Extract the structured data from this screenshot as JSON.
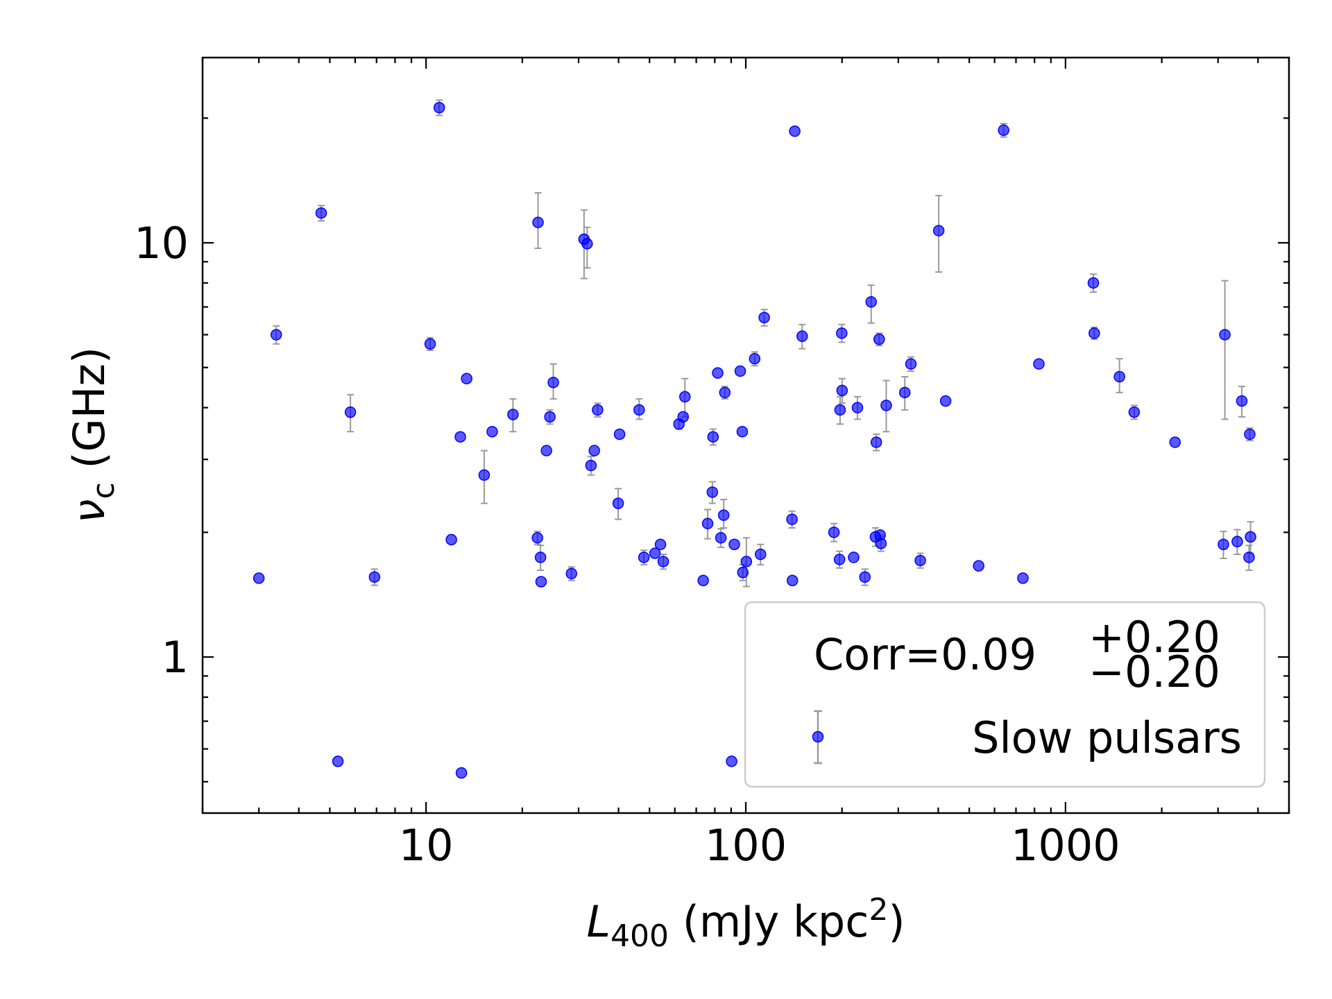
{
  "chart_data": {
    "type": "scatter",
    "xscale": "log",
    "yscale": "log",
    "xlim": [
      2.0,
      5000
    ],
    "ylim": [
      0.42,
      28
    ],
    "xticks": [
      10,
      100,
      1000
    ],
    "xtick_labels": [
      "10",
      "100",
      "1000"
    ],
    "yticks": [
      1,
      10
    ],
    "ytick_labels": [
      "1",
      "10"
    ],
    "xlabel": {
      "main": "L",
      "sub": "400",
      "rest": " (mJy kpc",
      "sup": "2",
      "end": ")"
    },
    "ylabel": {
      "main": "ν",
      "sub": "c",
      "rest": " (GHz)"
    },
    "grid": false,
    "legend": {
      "placement": "lower-right",
      "annotation": {
        "prefix": "Corr=0.09",
        "sup": "+0.20",
        "sub": "−0.20"
      },
      "entries": [
        "Slow pulsars"
      ]
    },
    "series": [
      {
        "name": "Slow pulsars",
        "marker_color": "#0000ff",
        "errorbar_color": "#999999",
        "points": [
          {
            "x": 3.0,
            "y": 1.55
          },
          {
            "x": 3.4,
            "y": 6.0,
            "lo": 5.7,
            "hi": 6.3
          },
          {
            "x": 4.7,
            "y": 11.8,
            "lo": 11.3,
            "hi": 12.3
          },
          {
            "x": 5.3,
            "y": 0.56
          },
          {
            "x": 5.8,
            "y": 3.9,
            "lo": 3.5,
            "hi": 4.3
          },
          {
            "x": 6.9,
            "y": 1.56,
            "lo": 1.49,
            "hi": 1.63
          },
          {
            "x": 10.3,
            "y": 5.7,
            "lo": 5.5,
            "hi": 5.9
          },
          {
            "x": 11.0,
            "y": 21.2,
            "lo": 20.3,
            "hi": 22.1
          },
          {
            "x": 12.0,
            "y": 1.92
          },
          {
            "x": 12.8,
            "y": 3.4
          },
          {
            "x": 12.9,
            "y": 0.525
          },
          {
            "x": 13.4,
            "y": 4.7
          },
          {
            "x": 15.2,
            "y": 2.75,
            "lo": 2.35,
            "hi": 3.15
          },
          {
            "x": 16.1,
            "y": 3.5
          },
          {
            "x": 18.7,
            "y": 3.85,
            "lo": 3.5,
            "hi": 4.2
          },
          {
            "x": 22.3,
            "y": 1.94,
            "lo": 1.87,
            "hi": 2.01
          },
          {
            "x": 22.4,
            "y": 11.2,
            "lo": 9.7,
            "hi": 13.2
          },
          {
            "x": 22.8,
            "y": 1.74,
            "lo": 1.62,
            "hi": 1.86
          },
          {
            "x": 22.9,
            "y": 1.52
          },
          {
            "x": 23.8,
            "y": 3.15
          },
          {
            "x": 24.4,
            "y": 3.8,
            "lo": 3.65,
            "hi": 3.95
          },
          {
            "x": 25.0,
            "y": 4.6,
            "lo": 4.2,
            "hi": 5.1
          },
          {
            "x": 28.5,
            "y": 1.59,
            "lo": 1.53,
            "hi": 1.65
          },
          {
            "x": 31.2,
            "y": 10.2,
            "lo": 8.2,
            "hi": 12.0
          },
          {
            "x": 31.9,
            "y": 9.95,
            "lo": 8.7,
            "hi": 10.9
          },
          {
            "x": 32.8,
            "y": 2.9,
            "lo": 2.75,
            "hi": 3.05
          },
          {
            "x": 33.6,
            "y": 3.15
          },
          {
            "x": 34.4,
            "y": 3.95,
            "lo": 3.8,
            "hi": 4.1
          },
          {
            "x": 39.9,
            "y": 2.35,
            "lo": 2.15,
            "hi": 2.55
          },
          {
            "x": 40.3,
            "y": 3.45
          },
          {
            "x": 46.4,
            "y": 3.95,
            "lo": 3.75,
            "hi": 4.2
          },
          {
            "x": 48.0,
            "y": 1.74,
            "lo": 1.67,
            "hi": 1.81
          },
          {
            "x": 52.0,
            "y": 1.78
          },
          {
            "x": 54.1,
            "y": 1.87
          },
          {
            "x": 55.2,
            "y": 1.7,
            "lo": 1.63,
            "hi": 1.77
          },
          {
            "x": 61.8,
            "y": 3.65,
            "lo": 3.55,
            "hi": 3.75
          },
          {
            "x": 63.7,
            "y": 3.8
          },
          {
            "x": 64.5,
            "y": 4.25,
            "lo": 3.8,
            "hi": 4.7
          },
          {
            "x": 73.6,
            "y": 1.53
          },
          {
            "x": 76.0,
            "y": 2.1,
            "lo": 1.93,
            "hi": 2.27
          },
          {
            "x": 78.6,
            "y": 2.5,
            "lo": 2.35,
            "hi": 2.65
          },
          {
            "x": 79.0,
            "y": 3.4,
            "lo": 3.25,
            "hi": 3.55
          },
          {
            "x": 81.7,
            "y": 4.85
          },
          {
            "x": 83.6,
            "y": 1.94,
            "lo": 1.84,
            "hi": 2.04
          },
          {
            "x": 85.3,
            "y": 2.2,
            "lo": 2.05,
            "hi": 2.4
          },
          {
            "x": 86.0,
            "y": 4.35,
            "lo": 4.2,
            "hi": 4.5
          },
          {
            "x": 90.3,
            "y": 0.56
          },
          {
            "x": 92.1,
            "y": 1.87
          },
          {
            "x": 96.1,
            "y": 4.9
          },
          {
            "x": 97.5,
            "y": 3.5
          },
          {
            "x": 97.9,
            "y": 1.6,
            "lo": 1.53,
            "hi": 1.67
          },
          {
            "x": 100.4,
            "y": 1.7,
            "lo": 1.48,
            "hi": 1.94
          },
          {
            "x": 106.6,
            "y": 5.25,
            "lo": 5.05,
            "hi": 5.45
          },
          {
            "x": 111.2,
            "y": 1.77,
            "lo": 1.67,
            "hi": 1.87
          },
          {
            "x": 114.2,
            "y": 6.6,
            "lo": 6.3,
            "hi": 6.9
          },
          {
            "x": 139.5,
            "y": 2.15,
            "lo": 2.05,
            "hi": 2.25
          },
          {
            "x": 139.9,
            "y": 1.53
          },
          {
            "x": 142.3,
            "y": 18.6
          },
          {
            "x": 150.1,
            "y": 5.95,
            "lo": 5.55,
            "hi": 6.35
          },
          {
            "x": 188.7,
            "y": 2.0,
            "lo": 1.9,
            "hi": 2.1
          },
          {
            "x": 196.4,
            "y": 1.72,
            "lo": 1.64,
            "hi": 1.8
          },
          {
            "x": 197.2,
            "y": 3.95,
            "lo": 3.65,
            "hi": 4.25
          },
          {
            "x": 199.6,
            "y": 6.05,
            "lo": 5.75,
            "hi": 6.35
          },
          {
            "x": 200.1,
            "y": 4.4,
            "lo": 4.1,
            "hi": 4.7
          },
          {
            "x": 217.5,
            "y": 1.74
          },
          {
            "x": 223.5,
            "y": 4.0,
            "lo": 3.75,
            "hi": 4.25
          },
          {
            "x": 235.8,
            "y": 1.56,
            "lo": 1.49,
            "hi": 1.63
          },
          {
            "x": 246.7,
            "y": 7.2,
            "lo": 6.4,
            "hi": 7.9
          },
          {
            "x": 254.4,
            "y": 1.95,
            "lo": 1.85,
            "hi": 2.05
          },
          {
            "x": 256.0,
            "y": 3.3,
            "lo": 3.15,
            "hi": 3.45
          },
          {
            "x": 261.3,
            "y": 5.85,
            "lo": 5.65,
            "hi": 6.05
          },
          {
            "x": 263.1,
            "y": 1.97
          },
          {
            "x": 264.8,
            "y": 1.88,
            "lo": 1.8,
            "hi": 1.96
          },
          {
            "x": 275.0,
            "y": 4.05,
            "lo": 3.5,
            "hi": 4.65
          },
          {
            "x": 314.3,
            "y": 4.35,
            "lo": 3.95,
            "hi": 4.75
          },
          {
            "x": 328.4,
            "y": 5.1,
            "lo": 4.9,
            "hi": 5.3
          },
          {
            "x": 351.4,
            "y": 1.71,
            "lo": 1.64,
            "hi": 1.78
          },
          {
            "x": 401.3,
            "y": 10.7,
            "lo": 8.5,
            "hi": 13.0
          },
          {
            "x": 421.8,
            "y": 4.15
          },
          {
            "x": 535.0,
            "y": 1.66
          },
          {
            "x": 640.3,
            "y": 18.7,
            "lo": 18.0,
            "hi": 19.4
          },
          {
            "x": 735.8,
            "y": 1.55
          },
          {
            "x": 825.5,
            "y": 5.1
          },
          {
            "x": 1222,
            "y": 8.0,
            "lo": 7.6,
            "hi": 8.4
          },
          {
            "x": 1230,
            "y": 6.05,
            "lo": 5.85,
            "hi": 6.25
          },
          {
            "x": 1475,
            "y": 4.75,
            "lo": 4.35,
            "hi": 5.25
          },
          {
            "x": 1640,
            "y": 3.9,
            "lo": 3.75,
            "hi": 4.05
          },
          {
            "x": 2201,
            "y": 3.3
          },
          {
            "x": 3118,
            "y": 1.87,
            "lo": 1.73,
            "hi": 2.01
          },
          {
            "x": 3151,
            "y": 6.0,
            "lo": 3.75,
            "hi": 8.1
          },
          {
            "x": 3445,
            "y": 1.9,
            "lo": 1.77,
            "hi": 2.03
          },
          {
            "x": 3559,
            "y": 4.15,
            "lo": 3.8,
            "hi": 4.5
          },
          {
            "x": 3750,
            "y": 1.74,
            "lo": 1.62,
            "hi": 1.86
          },
          {
            "x": 3770,
            "y": 3.45,
            "lo": 3.33,
            "hi": 3.57
          },
          {
            "x": 3790,
            "y": 1.95,
            "lo": 1.78,
            "hi": 2.12
          }
        ]
      }
    ]
  }
}
